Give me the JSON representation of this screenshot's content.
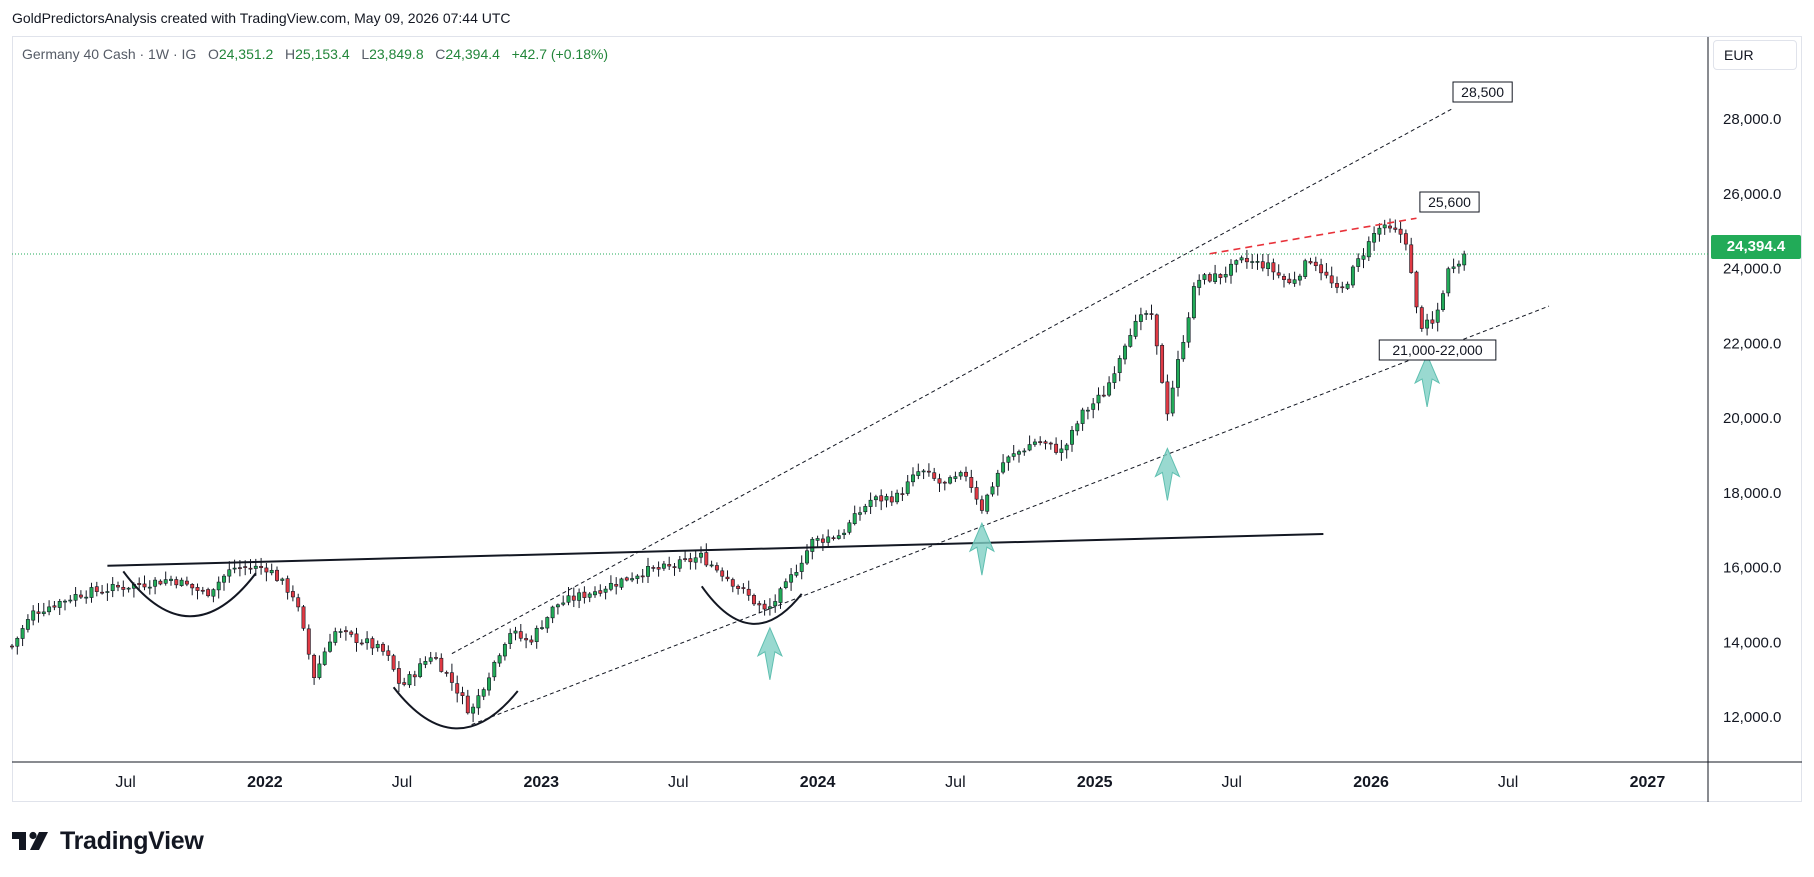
{
  "header": {
    "credit": "GoldPredictorsAnalysis created with TradingView.com, May 09, 2026 07:44 UTC"
  },
  "legend": {
    "symbol": "Germany 40 Cash · 1W · IG",
    "open_label": "O",
    "open": "24,351.2",
    "high_label": "H",
    "high": "25,153.4",
    "low_label": "L",
    "low": "23,849.8",
    "close_label": "C",
    "close": "24,394.4",
    "change": "+42.7 (+0.18%)"
  },
  "currency": "EUR",
  "price_badge": "24,394.4",
  "colors": {
    "up": "#22ab58",
    "down": "#e03a44",
    "arrow": "#7fd0c4",
    "trend": "#131722",
    "resistance": "#e8323a",
    "price_line": "#22ab58"
  },
  "annotations": {
    "target_high": "28,500",
    "resistance": "25,600",
    "support_zone": "21,000-22,000"
  },
  "brand": {
    "name": "TradingView",
    "icon": "tradingview-logo-icon"
  },
  "chart_data": {
    "type": "candlestick",
    "title": "Germany 40 Cash",
    "interval": "1W",
    "ylim": [
      10800,
      30200
    ],
    "y_ticks": [
      "12,000.0",
      "14,000.0",
      "16,000.0",
      "18,000.0",
      "20,000.0",
      "22,000.0",
      "24,000.0",
      "26,000.0",
      "28,000.0"
    ],
    "y_tick_values": [
      12000,
      14000,
      16000,
      18000,
      20000,
      22000,
      24000,
      26000,
      28000
    ],
    "x_ticks": [
      "Jul",
      "2022",
      "Jul",
      "2023",
      "Jul",
      "2024",
      "Jul",
      "2025",
      "Jul",
      "2026",
      "Jul",
      "2027"
    ],
    "x_tick_dates": [
      "2021-07-01",
      "2022-01-01",
      "2022-07-01",
      "2023-01-01",
      "2023-07-01",
      "2024-01-01",
      "2024-07-01",
      "2025-01-01",
      "2025-07-01",
      "2026-01-01",
      "2026-07-01",
      "2027-01-01"
    ],
    "x_range": [
      "2021-02-01",
      "2027-03-22"
    ],
    "last_price": 24394.4,
    "close_anchors": [
      [
        "2021-02-01",
        13900
      ],
      [
        "2021-03-01",
        14800
      ],
      [
        "2021-05-01",
        15300
      ],
      [
        "2021-07-01",
        15500
      ],
      [
        "2021-09-01",
        15700
      ],
      [
        "2021-10-15",
        15300
      ],
      [
        "2021-11-20",
        16000
      ],
      [
        "2022-01-05",
        16000
      ],
      [
        "2022-02-10",
        15200
      ],
      [
        "2022-03-07",
        13100
      ],
      [
        "2022-04-01",
        14300
      ],
      [
        "2022-05-15",
        14000
      ],
      [
        "2022-06-10",
        13700
      ],
      [
        "2022-06-30",
        12800
      ],
      [
        "2022-08-10",
        13700
      ],
      [
        "2022-09-10",
        12800
      ],
      [
        "2022-09-30",
        12100
      ],
      [
        "2022-10-20",
        13000
      ],
      [
        "2022-11-20",
        14300
      ],
      [
        "2022-12-15",
        14000
      ],
      [
        "2023-01-20",
        15000
      ],
      [
        "2023-03-01",
        15300
      ],
      [
        "2023-04-10",
        15600
      ],
      [
        "2023-05-15",
        15900
      ],
      [
        "2023-06-20",
        16000
      ],
      [
        "2023-07-31",
        16300
      ],
      [
        "2023-09-01",
        15800
      ],
      [
        "2023-10-25",
        14800
      ],
      [
        "2023-11-20",
        15500
      ],
      [
        "2023-12-25",
        16700
      ],
      [
        "2024-02-01",
        16900
      ],
      [
        "2024-03-10",
        17800
      ],
      [
        "2024-04-15",
        17900
      ],
      [
        "2024-05-15",
        18600
      ],
      [
        "2024-06-15",
        18200
      ],
      [
        "2024-07-15",
        18500
      ],
      [
        "2024-08-05",
        17600
      ],
      [
        "2024-09-01",
        18800
      ],
      [
        "2024-10-15",
        19400
      ],
      [
        "2024-11-20",
        19100
      ],
      [
        "2024-12-15",
        20100
      ],
      [
        "2025-01-15",
        20700
      ],
      [
        "2025-02-15",
        22300
      ],
      [
        "2025-03-15",
        22900
      ],
      [
        "2025-04-07",
        20200
      ],
      [
        "2025-04-20",
        21400
      ],
      [
        "2025-05-15",
        23700
      ],
      [
        "2025-06-15",
        23800
      ],
      [
        "2025-07-15",
        24200
      ],
      [
        "2025-08-15",
        24100
      ],
      [
        "2025-09-15",
        23600
      ],
      [
        "2025-10-15",
        24300
      ],
      [
        "2025-11-20",
        23300
      ],
      [
        "2025-12-15",
        24200
      ],
      [
        "2026-01-10",
        25100
      ],
      [
        "2026-02-15",
        24900
      ],
      [
        "2026-03-05",
        22500
      ],
      [
        "2026-03-25",
        22500
      ],
      [
        "2026-04-15",
        24100
      ],
      [
        "2026-05-09",
        24394
      ]
    ],
    "overlays": {
      "trendline_neckline": {
        "from": [
          "2021-06-07",
          16050
        ],
        "to": [
          "2025-10-30",
          16900
        ]
      },
      "channel_upper": {
        "from": [
          "2022-09-05",
          13700
        ],
        "to": [
          "2026-04-20",
          28300
        ]
      },
      "channel_lower": {
        "from": [
          "2022-10-01",
          11800
        ],
        "to": [
          "2026-08-24",
          23000
        ]
      },
      "resistance_line": {
        "from": [
          "2025-06-02",
          24400
        ],
        "to": [
          "2026-03-02",
          25350
        ]
      },
      "rounded_bottoms": [
        {
          "from": [
            "2021-06-28",
            15900
          ],
          "to": [
            "2021-12-20",
            15850
          ],
          "depth": 14700
        },
        {
          "from": [
            "2022-06-20",
            12800
          ],
          "to": [
            "2022-12-01",
            12700
          ],
          "depth": 11700
        },
        {
          "from": [
            "2023-08-01",
            15500
          ],
          "to": [
            "2023-12-11",
            15300
          ],
          "depth": 14500
        }
      ],
      "up_arrows_at": [
        [
          "2023-10-30",
          13000
        ],
        [
          "2024-08-05",
          15800
        ],
        [
          "2025-04-07",
          17800
        ],
        [
          "2026-03-16",
          20300
        ]
      ]
    }
  }
}
